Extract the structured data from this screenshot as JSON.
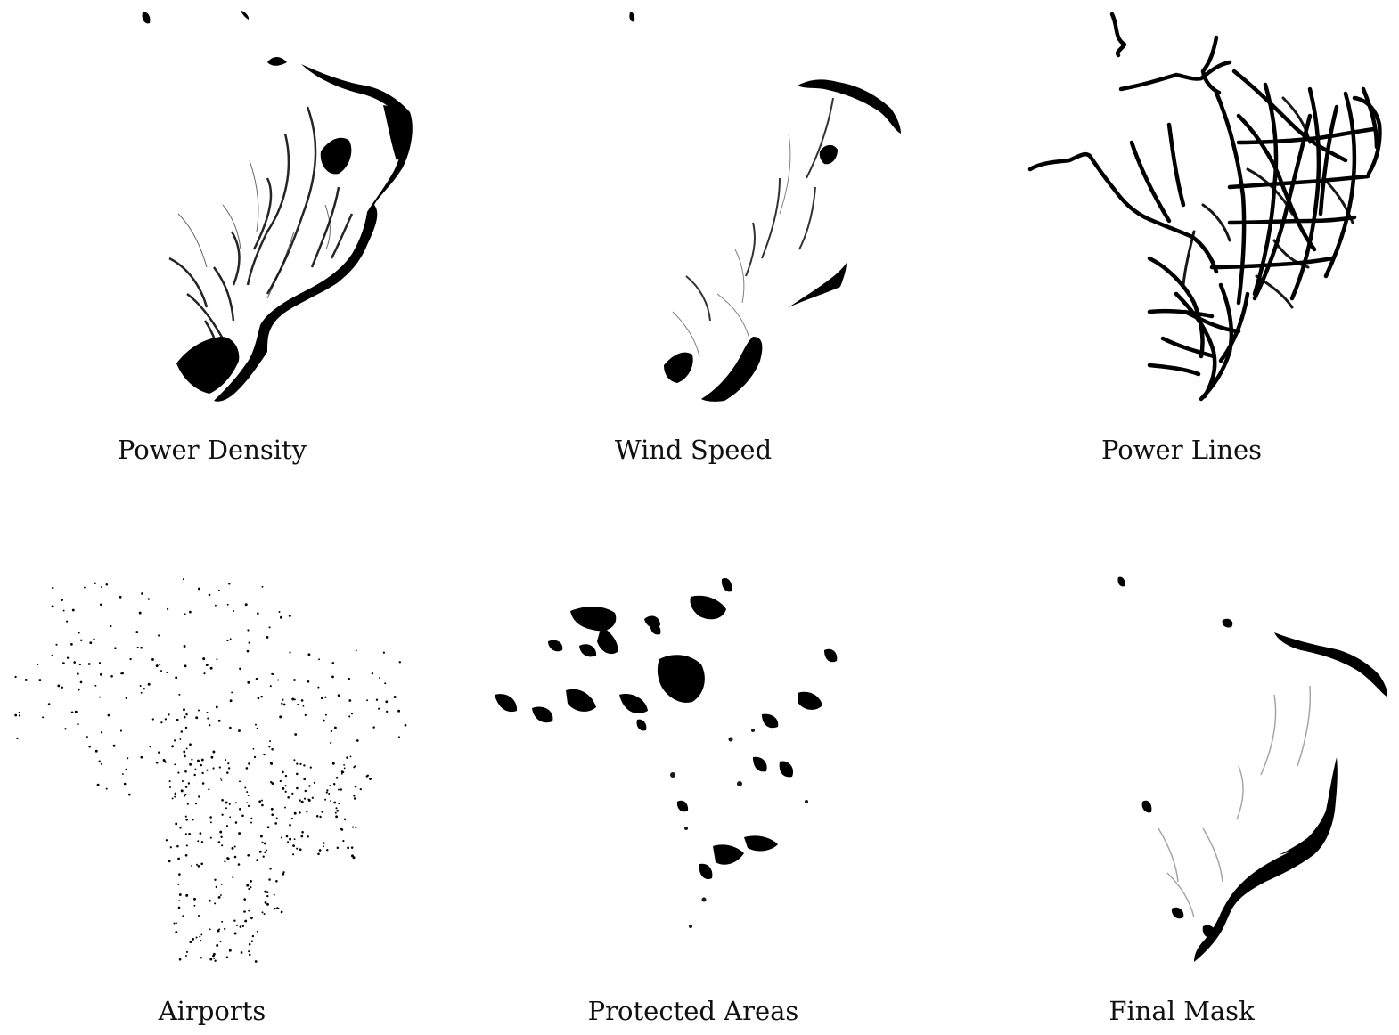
{
  "panels": [
    {
      "id": "power-density",
      "caption": "Power Density"
    },
    {
      "id": "wind-speed",
      "caption": "Wind Speed"
    },
    {
      "id": "power-lines",
      "caption": "Power Lines"
    },
    {
      "id": "airports",
      "caption": "Airports"
    },
    {
      "id": "protected-areas",
      "caption": "Protected Areas"
    },
    {
      "id": "final-mask",
      "caption": "Final Mask"
    }
  ],
  "colors": {
    "mask": "#000000",
    "background": "#ffffff"
  }
}
